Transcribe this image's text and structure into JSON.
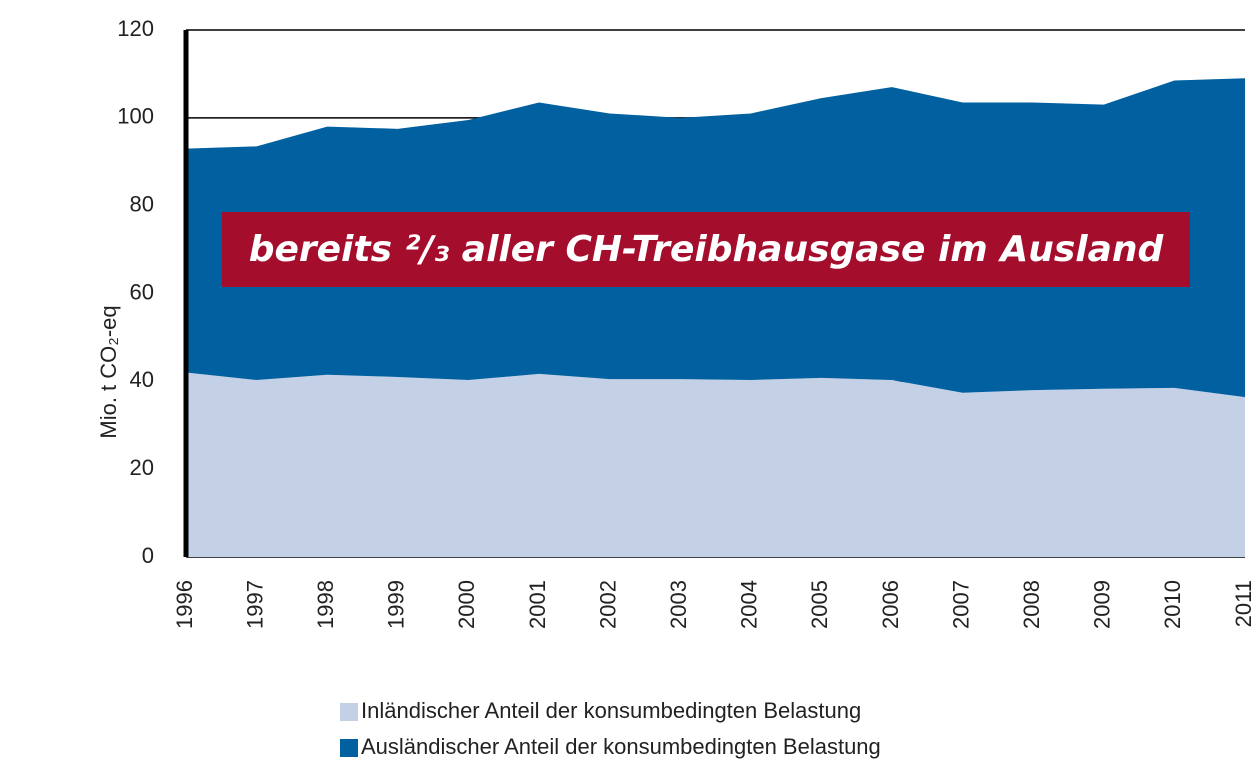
{
  "chart_data": {
    "type": "stacked_area",
    "ylabel": "Mio. t CO₂-eq",
    "annotation": "bereits ²/₃ aller CH-Treibhausgase im Ausland",
    "x": [
      "1996",
      "1997",
      "1998",
      "1999",
      "2000",
      "2001",
      "2002",
      "2003",
      "2004",
      "2005",
      "2006",
      "2007",
      "2008",
      "2009",
      "2010",
      "2011"
    ],
    "series": [
      {
        "name": "Inländischer Anteil der konsumbedingten Belastung",
        "color": "#c3d0e6",
        "values": [
          42,
          40.3,
          41.5,
          41,
          40.3,
          41.7,
          40.5,
          40.5,
          40.3,
          40.8,
          40.3,
          37.4,
          38,
          38.3,
          38.5,
          36.4
        ]
      },
      {
        "name": "Ausländischer Anteil der konsumbedingten Belastung",
        "color": "#0060a0",
        "values": [
          51,
          53.2,
          56.5,
          56.5,
          59.2,
          61.8,
          60.5,
          59.5,
          60.7,
          63.7,
          66.7,
          66.1,
          65.5,
          64.7,
          70,
          72.6
        ]
      }
    ],
    "ylim": [
      0,
      120
    ],
    "yticks": [
      0,
      20,
      40,
      60,
      80,
      100,
      120
    ],
    "grid": true
  }
}
